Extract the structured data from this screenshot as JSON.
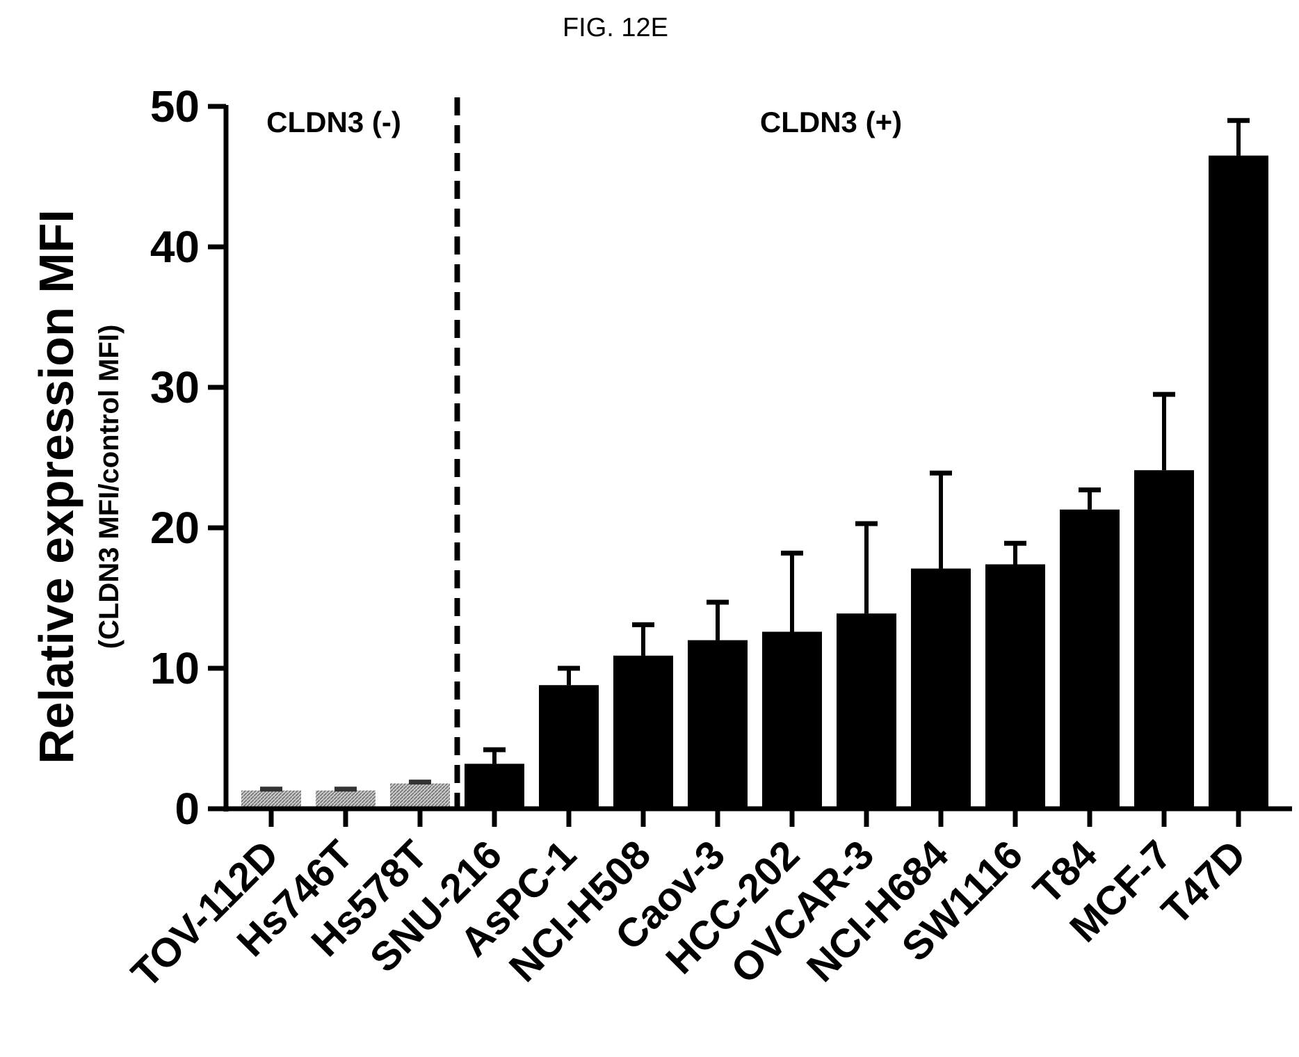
{
  "figure_label": "FIG. 12E",
  "colors": {
    "positive_bar": "#000000",
    "negative_bar": "#9a9a9a",
    "axis": "#000000"
  },
  "chart_data": {
    "type": "bar",
    "title": "",
    "ylabel": "Relative expression MFI",
    "ylabel_sub": "(CLDN3 MFI/control MFI)",
    "xlabel": "",
    "ylim": [
      0,
      50
    ],
    "yticks": [
      0,
      10,
      20,
      30,
      40,
      50
    ],
    "grid": false,
    "categories": [
      "TOV-112D",
      "Hs746T",
      "Hs578T",
      "SNU-216",
      "AsPC-1",
      "NCI-H508",
      "Caov-3",
      "HCC-202",
      "OVCAR-3",
      "NCI-H684",
      "SW1116",
      "T84",
      "MCF-7",
      "T47D"
    ],
    "values": [
      1.3,
      1.3,
      1.8,
      3.2,
      8.8,
      10.9,
      12.0,
      12.6,
      13.9,
      17.1,
      17.4,
      21.3,
      24.1,
      46.5
    ],
    "errors": [
      0.1,
      0.1,
      0.1,
      1.0,
      1.2,
      2.2,
      2.7,
      5.6,
      6.4,
      6.8,
      1.5,
      1.4,
      5.4,
      2.5
    ],
    "groups": [
      {
        "label": "CLDN3 (-)",
        "start": 0,
        "end": 2,
        "style": "hatched-gray"
      },
      {
        "label": "CLDN3 (+)",
        "start": 3,
        "end": 13,
        "style": "solid-black"
      }
    ],
    "separator": "dashed line between Hs578T and SNU-216"
  }
}
